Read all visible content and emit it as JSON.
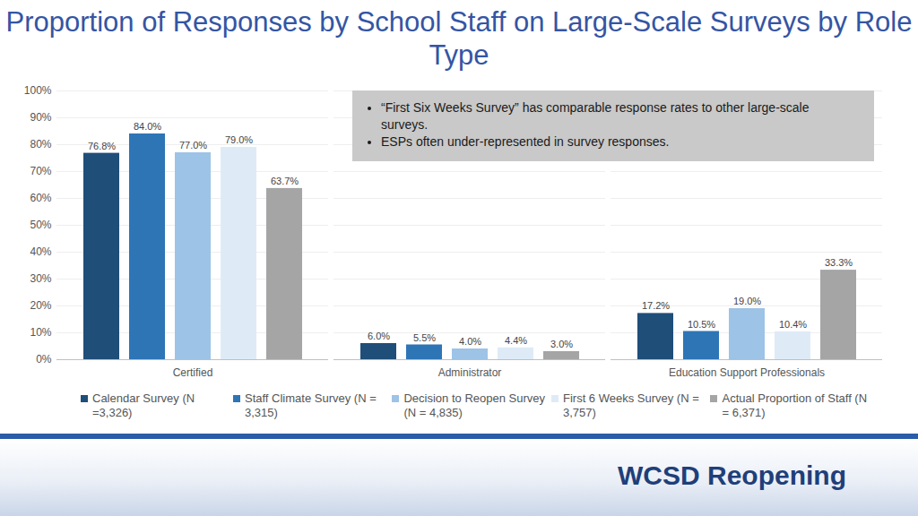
{
  "chart_data": {
    "type": "bar",
    "title": "Proportion of Responses by School Staff on Large-Scale Surveys by Role Type",
    "categories": [
      "Certified",
      "Administrator",
      "Education Support Professionals"
    ],
    "series": [
      {
        "name": "Calendar Survey (N =3,326)",
        "color": "#1f4e79",
        "values": [
          76.8,
          6.0,
          17.2
        ],
        "value_labels": [
          "76.8%",
          "6.0%",
          "17.2%"
        ]
      },
      {
        "name": "Staff Climate Survey (N = 3,315)",
        "color": "#2e75b6",
        "values": [
          84.0,
          5.5,
          10.5
        ],
        "value_labels": [
          "84.0%",
          "5.5%",
          "10.5%"
        ]
      },
      {
        "name": "Decision to Reopen Survey (N = 4,835)",
        "color": "#9dc3e6",
        "values": [
          77.0,
          4.0,
          19.0
        ],
        "value_labels": [
          "77.0%",
          "4.0%",
          "19.0%"
        ]
      },
      {
        "name": "First 6 Weeks Survey (N = 3,757)",
        "color": "#deebf7",
        "values": [
          79.0,
          4.4,
          10.4
        ],
        "value_labels": [
          "79.0%",
          "4.4%",
          "10.4%"
        ]
      },
      {
        "name": "Actual Proportion of Staff (N = 6,371)",
        "color": "#a5a5a5",
        "values": [
          63.7,
          3.0,
          33.3
        ],
        "value_labels": [
          "63.7%",
          "3.0%",
          "33.3%"
        ]
      }
    ],
    "ylim": [
      0,
      100
    ],
    "yticks": [
      {
        "value": 0,
        "label": "0%"
      },
      {
        "value": 10,
        "label": "10%"
      },
      {
        "value": 20,
        "label": "20%"
      },
      {
        "value": 30,
        "label": "30%"
      },
      {
        "value": 40,
        "label": "40%"
      },
      {
        "value": 50,
        "label": "50%"
      },
      {
        "value": 60,
        "label": "60%"
      },
      {
        "value": 70,
        "label": "70%"
      },
      {
        "value": 80,
        "label": "80%"
      },
      {
        "value": 90,
        "label": "90%"
      },
      {
        "value": 100,
        "label": "100%"
      }
    ],
    "grid": true,
    "data_labels": true,
    "legend": "bottom",
    "annotations": [
      "“First Six Weeks Survey” has comparable response rates to other large-scale surveys.",
      "ESPs often under-represented in survey responses."
    ],
    "footer": "WCSD Reopening"
  }
}
